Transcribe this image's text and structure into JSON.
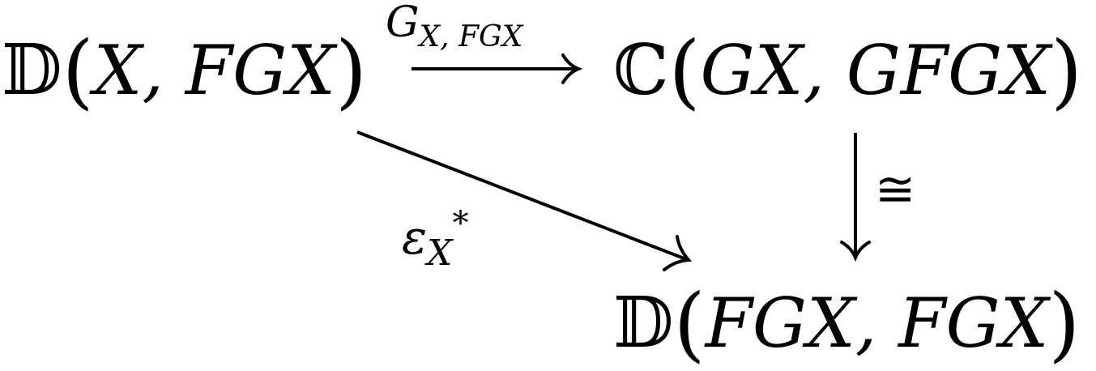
{
  "diagram": {
    "nodes": {
      "top_left": {
        "category": "𝔻",
        "open": "(",
        "args": "X, FGX",
        "close": ")"
      },
      "top_right": {
        "category": "ℂ",
        "open": "(",
        "args": "GX, GFGX",
        "close": ")"
      },
      "bottom_right": {
        "category": "𝔻",
        "open": "(",
        "args": "FGX, FGX",
        "close": ")"
      }
    },
    "arrows": {
      "top": {
        "symbol": "G",
        "subscript": "X, FGX"
      },
      "right": {
        "symbol": "≅"
      },
      "diagonal": {
        "symbol": "ε",
        "subscript": "X",
        "superscript": "*"
      }
    }
  }
}
